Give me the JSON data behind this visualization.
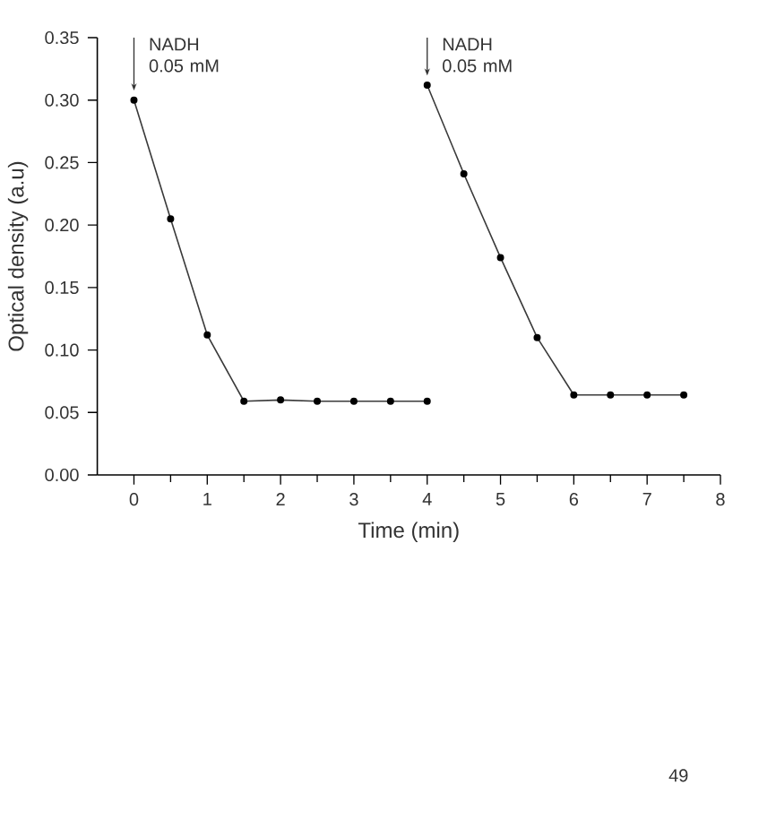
{
  "chart_data": {
    "type": "line",
    "xlabel": "Time (min)",
    "ylabel": "Optical density (a.u)",
    "series": [
      {
        "color": "#3a3a3a",
        "x": [
          0,
          0.5,
          1,
          1.5,
          2,
          2.5,
          3,
          3.5,
          4
        ],
        "values": [
          0.3,
          0.205,
          0.112,
          0.059,
          0.06,
          0.059,
          0.059,
          0.059,
          0.059
        ]
      },
      {
        "color": "#3a3a3a",
        "x": [
          4,
          4.5,
          5,
          5.5,
          6,
          6.5,
          7,
          7.5
        ],
        "values": [
          0.312,
          0.241,
          0.174,
          0.11,
          0.064,
          0.064,
          0.064,
          0.064
        ]
      }
    ],
    "xlim": [
      -0.5,
      8
    ],
    "ylim": [
      0,
      0.35
    ],
    "xticks": [
      0,
      {
        "value": 0.5,
        "label": null
      },
      1,
      {
        "value": 1.5,
        "label": null
      },
      2,
      {
        "value": 2.5,
        "label": null
      },
      3,
      {
        "value": 3.5,
        "label": null
      },
      4,
      {
        "value": 4.5,
        "label": null
      },
      5,
      {
        "value": 5.5,
        "label": null
      },
      6,
      {
        "value": 6.5,
        "label": null
      },
      7,
      {
        "value": 7.5,
        "label": null
      },
      8
    ],
    "yticks": [
      {
        "value": 0,
        "label": "0.00"
      },
      0.05,
      {
        "value": 0.1,
        "label": "0.10"
      },
      0.15,
      {
        "value": 0.2,
        "label": "0.20"
      },
      0.25,
      {
        "value": 0.3,
        "label": "0.30"
      },
      0.35
    ],
    "marker": "circle",
    "line_style": "solid",
    "annotations": [
      {
        "text": "NADH 0.05 mM",
        "x": 0,
        "y": 0.3
      },
      {
        "text": "NADH 0.05 mM",
        "x": 4,
        "y": 0.312
      },
      "49"
    ]
  }
}
